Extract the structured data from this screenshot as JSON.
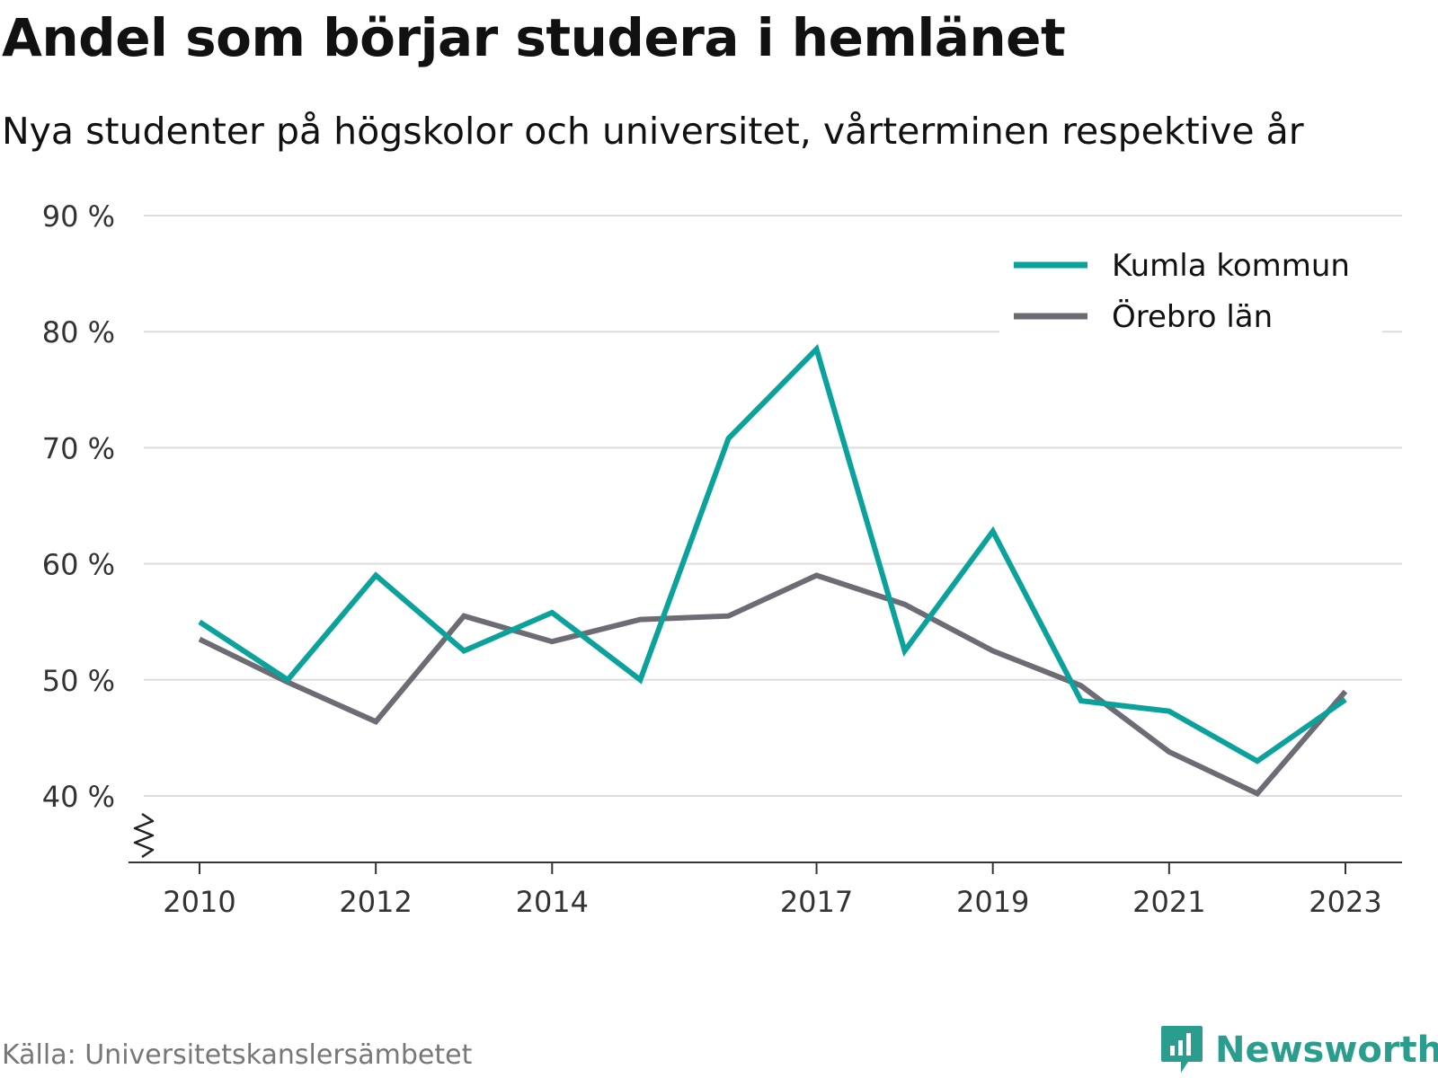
{
  "title": "Andel som börjar studera i hemlänet",
  "subtitle": "Nya studenter på högskolor och universitet, vårterminen respektive år",
  "source": "Källa: Universitetskanslersämbetet",
  "brand": "Newsworthy",
  "colors": {
    "teal": "#0aa29a",
    "gray": "#6d6b73",
    "grid": "#dddddd",
    "brand": "#2a9d8f"
  },
  "chart_data": {
    "type": "line",
    "x": [
      2010,
      2011,
      2012,
      2013,
      2014,
      2015,
      2016,
      2017,
      2018,
      2019,
      2020,
      2021,
      2022,
      2023
    ],
    "xticks": [
      "2010",
      "2012",
      "2014",
      "2017",
      "2019",
      "2021",
      "2023"
    ],
    "yticks": [
      "40 %",
      "50 %",
      "60 %",
      "70 %",
      "80 %",
      "90 %"
    ],
    "ylim": [
      34,
      90
    ],
    "y_axis_break": true,
    "grid": true,
    "legend_position": "top-right",
    "series": [
      {
        "name": "Kumla kommun",
        "color": "#0aa29a",
        "values": [
          55.0,
          50.0,
          59.0,
          52.5,
          55.8,
          50.0,
          70.8,
          78.5,
          52.5,
          62.8,
          48.2,
          47.3,
          43.0,
          48.3
        ]
      },
      {
        "name": "Örebro län",
        "color": "#6d6b73",
        "values": [
          53.5,
          49.8,
          46.4,
          55.5,
          53.3,
          55.2,
          55.5,
          59.0,
          56.5,
          52.5,
          49.5,
          43.8,
          40.2,
          49.0
        ]
      }
    ]
  }
}
